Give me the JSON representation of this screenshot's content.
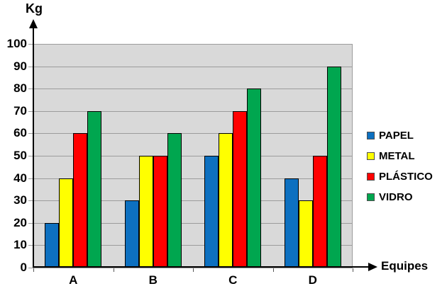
{
  "chart_data": {
    "type": "bar",
    "title": "",
    "categories": [
      "A",
      "B",
      "C",
      "D"
    ],
    "series": [
      {
        "name": "PAPEL",
        "color": "#0d70c0",
        "values": [
          20,
          30,
          50,
          40
        ]
      },
      {
        "name": "METAL",
        "color": "#ffff00",
        "values": [
          40,
          50,
          60,
          30
        ]
      },
      {
        "name": "PLÁSTICO",
        "color": "#ff0000",
        "values": [
          60,
          50,
          70,
          50
        ]
      },
      {
        "name": "VIDRO",
        "color": "#00a64f",
        "values": [
          70,
          60,
          80,
          90
        ]
      }
    ],
    "y_axis": {
      "title": "Kg",
      "min": 0,
      "max": 100,
      "step": 10,
      "ticks": [
        0,
        10,
        20,
        30,
        40,
        50,
        60,
        70,
        80,
        90,
        100
      ]
    },
    "x_axis": {
      "title": "Equipes"
    },
    "legend_position": "right",
    "grid": true,
    "plot_background": "#d9d9d9",
    "gridline_color": "#9c9c9c",
    "bar_border_color": "#000000"
  }
}
